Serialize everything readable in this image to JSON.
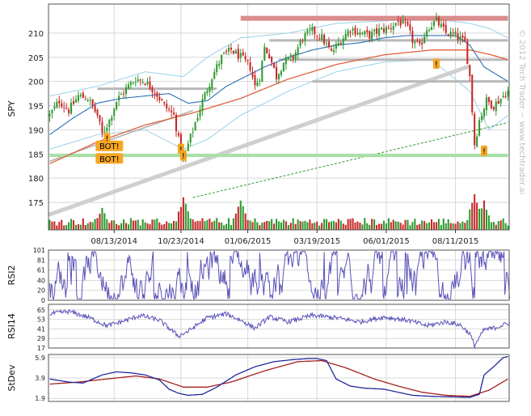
{
  "watermark": "© 2012 Tech Trader ~ www.techtrader.ai",
  "colors": {
    "up": "#2e9a2e",
    "down": "#c62828",
    "up_light": "#8fdc8f",
    "down_light": "#e48fa8",
    "rsi": "#5a52b8",
    "stdev_fast": "#1f2a9a",
    "stdev_slow": "#a32020",
    "ma_short": "#2a6fb8",
    "ma_long": "#e0603a",
    "band": "#9ad0e8",
    "trend": "#c8c8c8",
    "support": "#a8e0a8",
    "resist": "#d98a8a",
    "flag_bg": "#f5a623",
    "grid": "#d8d8d8"
  },
  "chart_data": [
    {
      "type": "candlestick",
      "name": "price",
      "ylabel": "SPY",
      "y_ticks": [
        175,
        180,
        185,
        190,
        195,
        200,
        205,
        210
      ],
      "ylim": [
        172,
        216
      ],
      "x_ticks": [
        "08/13/2014",
        "10/23/2014",
        "01/06/2015",
        "03/19/2015",
        "06/01/2015",
        "08/11/2015"
      ],
      "close_path": [
        [
          0,
          193.0
        ],
        [
          4,
          196.0
        ],
        [
          8,
          194.0
        ],
        [
          12,
          197.0
        ],
        [
          16,
          196.5
        ],
        [
          20,
          193.0
        ],
        [
          22,
          189.0
        ],
        [
          25,
          192.0
        ],
        [
          28,
          196.0
        ],
        [
          32,
          198.5
        ],
        [
          36,
          200.5
        ],
        [
          40,
          200.0
        ],
        [
          44,
          198.0
        ],
        [
          48,
          195.0
        ],
        [
          52,
          193.0
        ],
        [
          54,
          188.0
        ],
        [
          56,
          183.5
        ],
        [
          58,
          187.0
        ],
        [
          60,
          190.0
        ],
        [
          64,
          196.0
        ],
        [
          68,
          201.0
        ],
        [
          72,
          205.0
        ],
        [
          76,
          206.5
        ],
        [
          80,
          205.0
        ],
        [
          84,
          203.0
        ],
        [
          86,
          199.0
        ],
        [
          88,
          201.0
        ],
        [
          90,
          207.0
        ],
        [
          92,
          205.5
        ],
        [
          95,
          201.0
        ],
        [
          98,
          204.0
        ],
        [
          102,
          205.0
        ],
        [
          106,
          209.0
        ],
        [
          110,
          210.5
        ],
        [
          114,
          209.0
        ],
        [
          118,
          206.0
        ],
        [
          122,
          208.5
        ],
        [
          126,
          211.0
        ],
        [
          130,
          210.0
        ],
        [
          134,
          209.5
        ],
        [
          138,
          210.5
        ],
        [
          142,
          211.0
        ],
        [
          146,
          212.5
        ],
        [
          150,
          211.0
        ],
        [
          152,
          208.5
        ],
        [
          155,
          207.0
        ],
        [
          158,
          211.0
        ],
        [
          162,
          212.5
        ],
        [
          166,
          210.0
        ],
        [
          170,
          209.5
        ],
        [
          174,
          208.0
        ],
        [
          176,
          201.0
        ],
        [
          178,
          187.0
        ],
        [
          180,
          192.0
        ],
        [
          183,
          196.0
        ],
        [
          186,
          195.0
        ],
        [
          189,
          196.5
        ],
        [
          192,
          198.0
        ]
      ],
      "sma_short": [
        [
          0,
          189.0
        ],
        [
          10,
          192.5
        ],
        [
          20,
          195.5
        ],
        [
          30,
          196.5
        ],
        [
          40,
          197.0
        ],
        [
          50,
          197.5
        ],
        [
          58,
          195.5
        ],
        [
          66,
          196.0
        ],
        [
          74,
          199.0
        ],
        [
          82,
          201.0
        ],
        [
          90,
          203.0
        ],
        [
          100,
          205.0
        ],
        [
          110,
          206.5
        ],
        [
          120,
          207.5
        ],
        [
          130,
          208.0
        ],
        [
          140,
          209.0
        ],
        [
          150,
          209.5
        ],
        [
          160,
          209.5
        ],
        [
          170,
          209.5
        ],
        [
          176,
          207.5
        ],
        [
          182,
          203.0
        ],
        [
          192,
          200.0
        ]
      ],
      "sma_long": [
        [
          0,
          183.0
        ],
        [
          20,
          187.5
        ],
        [
          40,
          191.0
        ],
        [
          60,
          193.5
        ],
        [
          80,
          196.5
        ],
        [
          100,
          200.5
        ],
        [
          120,
          203.5
        ],
        [
          140,
          205.5
        ],
        [
          160,
          206.5
        ],
        [
          176,
          206.5
        ],
        [
          185,
          205.5
        ],
        [
          192,
          204.5
        ]
      ],
      "band_upper": [
        [
          0,
          197
        ],
        [
          20,
          199
        ],
        [
          40,
          202
        ],
        [
          56,
          201
        ],
        [
          66,
          205
        ],
        [
          80,
          209
        ],
        [
          100,
          210
        ],
        [
          120,
          212
        ],
        [
          140,
          212.5
        ],
        [
          160,
          213
        ],
        [
          176,
          212
        ],
        [
          184,
          211
        ],
        [
          192,
          209
        ]
      ],
      "band_lower": [
        [
          0,
          186
        ],
        [
          20,
          189
        ],
        [
          40,
          190
        ],
        [
          56,
          186
        ],
        [
          66,
          188
        ],
        [
          80,
          193
        ],
        [
          100,
          198
        ],
        [
          120,
          202
        ],
        [
          140,
          204
        ],
        [
          160,
          204.5
        ],
        [
          176,
          198
        ],
        [
          184,
          190
        ],
        [
          192,
          193
        ]
      ],
      "trend_lines": [
        {
          "from": [
            0,
            172.5
          ],
          "to": [
            175,
            203.0
          ],
          "style": "thick"
        },
        {
          "from": [
            0,
            183.5
          ],
          "to": [
            60,
            194.0
          ],
          "style": "thin"
        },
        {
          "from": [
            60,
            176.0
          ],
          "to": [
            192,
            191.5
          ],
          "style": "dashed"
        }
      ],
      "resistance_levels": [
        {
          "value": 212.8,
          "from": 80,
          "to": 192
        },
        {
          "value": 213.3,
          "from": 80,
          "to": 192
        }
      ],
      "gray_levels": [
        {
          "value": 208.5,
          "from": 92,
          "to": 192
        },
        {
          "value": 204.5,
          "from": 96,
          "to": 192
        },
        {
          "value": 198.5,
          "from": 20,
          "to": 70
        },
        {
          "value": 200.0,
          "from": 110,
          "to": 192
        }
      ],
      "support_levels": [
        {
          "value": 184.7,
          "from": 0,
          "to": 192
        }
      ],
      "signal_flags": [
        {
          "x": 25,
          "value": 186.6,
          "text": "BOT!"
        },
        {
          "x": 25,
          "value": 184.0,
          "text": "BOT!"
        },
        {
          "x": 24,
          "value": 188.2,
          "text": "!"
        },
        {
          "x": 55,
          "value": 186.0,
          "text": "!"
        },
        {
          "x": 56,
          "value": 184.6,
          "text": "!"
        },
        {
          "x": 162,
          "value": 203.6,
          "text": "!"
        },
        {
          "x": 182,
          "value": 185.6,
          "text": "!"
        }
      ],
      "volume_peak_zones": [
        [
          22,
          0.55
        ],
        [
          56,
          0.85
        ],
        [
          80,
          0.8
        ],
        [
          178,
          1.0
        ],
        [
          182,
          0.75
        ]
      ]
    },
    {
      "type": "line",
      "name": "rsi2",
      "ylabel": "RSI2",
      "y_ticks": [
        "101",
        "81",
        "61",
        "40",
        "20",
        "0"
      ],
      "ylim": [
        0,
        101
      ],
      "summary": "oscillates rapidly between about 5 and 98"
    },
    {
      "type": "line",
      "name": "rsi14",
      "ylabel": "RSI14",
      "y_ticks": [
        "65",
        "53",
        "41",
        "29",
        "17"
      ],
      "ylim": [
        17,
        72
      ],
      "path": [
        [
          0,
          60
        ],
        [
          8,
          63
        ],
        [
          16,
          56
        ],
        [
          24,
          45
        ],
        [
          30,
          50
        ],
        [
          38,
          58
        ],
        [
          46,
          52
        ],
        [
          54,
          32
        ],
        [
          58,
          38
        ],
        [
          66,
          55
        ],
        [
          74,
          60
        ],
        [
          80,
          52
        ],
        [
          86,
          42
        ],
        [
          92,
          56
        ],
        [
          100,
          50
        ],
        [
          110,
          58
        ],
        [
          120,
          55
        ],
        [
          130,
          50
        ],
        [
          140,
          56
        ],
        [
          150,
          52
        ],
        [
          158,
          45
        ],
        [
          166,
          50
        ],
        [
          172,
          46
        ],
        [
          176,
          35
        ],
        [
          178,
          20
        ],
        [
          182,
          40
        ],
        [
          186,
          42
        ],
        [
          192,
          48
        ]
      ]
    },
    {
      "type": "line",
      "name": "stdev",
      "ylabel": "StDev",
      "y_ticks": [
        "5.9",
        "3.9",
        "1.9"
      ],
      "ylim": [
        1.6,
        6.2
      ],
      "series": [
        {
          "path": [
            [
              0,
              3.8
            ],
            [
              8,
              3.5
            ],
            [
              14,
              3.4
            ],
            [
              22,
              4.2
            ],
            [
              28,
              4.5
            ],
            [
              34,
              4.4
            ],
            [
              40,
              4.2
            ],
            [
              46,
              3.7
            ],
            [
              50,
              2.8
            ],
            [
              54,
              2.4
            ],
            [
              58,
              2.2
            ],
            [
              64,
              2.3
            ],
            [
              70,
              3.0
            ],
            [
              78,
              4.2
            ],
            [
              86,
              5.0
            ],
            [
              94,
              5.5
            ],
            [
              102,
              5.7
            ],
            [
              108,
              5.8
            ],
            [
              112,
              5.8
            ],
            [
              116,
              5.6
            ],
            [
              120,
              3.8
            ],
            [
              126,
              3.1
            ],
            [
              132,
              2.9
            ],
            [
              140,
              2.8
            ],
            [
              146,
              2.5
            ],
            [
              152,
              2.2
            ],
            [
              160,
              2.1
            ],
            [
              168,
              2.05
            ],
            [
              176,
              2.0
            ],
            [
              180,
              2.3
            ],
            [
              182,
              4.2
            ],
            [
              186,
              5.0
            ],
            [
              190,
              5.9
            ],
            [
              192,
              6.0
            ]
          ]
        },
        {
          "path": [
            [
              0,
              3.3
            ],
            [
              12,
              3.5
            ],
            [
              24,
              3.8
            ],
            [
              36,
              4.1
            ],
            [
              46,
              3.8
            ],
            [
              56,
              3.0
            ],
            [
              66,
              3.0
            ],
            [
              76,
              3.5
            ],
            [
              90,
              4.6
            ],
            [
              104,
              5.5
            ],
            [
              114,
              5.6
            ],
            [
              124,
              4.9
            ],
            [
              136,
              3.8
            ],
            [
              146,
              3.1
            ],
            [
              156,
              2.5
            ],
            [
              166,
              2.2
            ],
            [
              176,
              2.1
            ],
            [
              184,
              2.7
            ],
            [
              192,
              3.8
            ]
          ]
        }
      ]
    }
  ]
}
